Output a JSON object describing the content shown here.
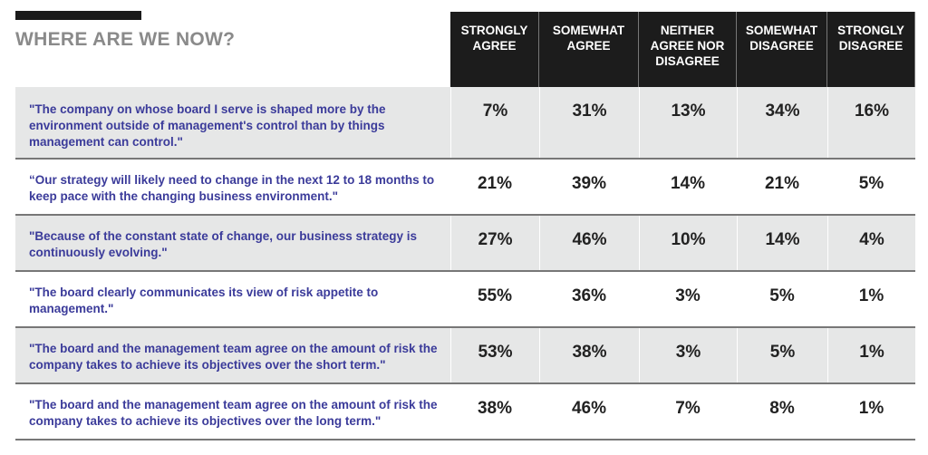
{
  "title": "WHERE ARE WE NOW?",
  "colors": {
    "header_bg": "#1c1c1c",
    "statement_text": "#3b3b9a",
    "title": "#8a8a8a",
    "row_alt": "#e6e7e7"
  },
  "chart_data": {
    "type": "table",
    "title": "WHERE ARE WE NOW?",
    "columns": [
      "STRONGLY AGREE",
      "SOMEWHAT AGREE",
      "NEITHER AGREE NOR DISAGREE",
      "SOMEWHAT DISAGREE",
      "STRONGLY DISAGREE"
    ],
    "rows": [
      {
        "statement": "\"The company on whose board I serve is shaped more by the environment outside of management's control than by things management can control.\"",
        "values": [
          "7%",
          "31%",
          "13%",
          "34%",
          "16%"
        ]
      },
      {
        "statement": "“Our strategy will likely need to change in the next 12 to 18 months to keep pace with the changing business environment.\"",
        "values": [
          "21%",
          "39%",
          "14%",
          "21%",
          "5%"
        ]
      },
      {
        "statement": "\"Because of the constant state of change, our business strategy is continuously evolving.\"",
        "values": [
          "27%",
          "46%",
          "10%",
          "14%",
          "4%"
        ]
      },
      {
        "statement": "\"The board clearly communicates its view of risk appetite to management.\"",
        "values": [
          "55%",
          "36%",
          "3%",
          "5%",
          "1%"
        ]
      },
      {
        "statement": "\"The board and the management team agree on the amount of risk the company takes to achieve its objectives over the short term.\"",
        "values": [
          "53%",
          "38%",
          "3%",
          "5%",
          "1%"
        ]
      },
      {
        "statement": "\"The board and the management team agree on the amount of risk the company takes to achieve its objectives over the long term.\"",
        "values": [
          "38%",
          "46%",
          "7%",
          "8%",
          "1%"
        ]
      }
    ]
  }
}
